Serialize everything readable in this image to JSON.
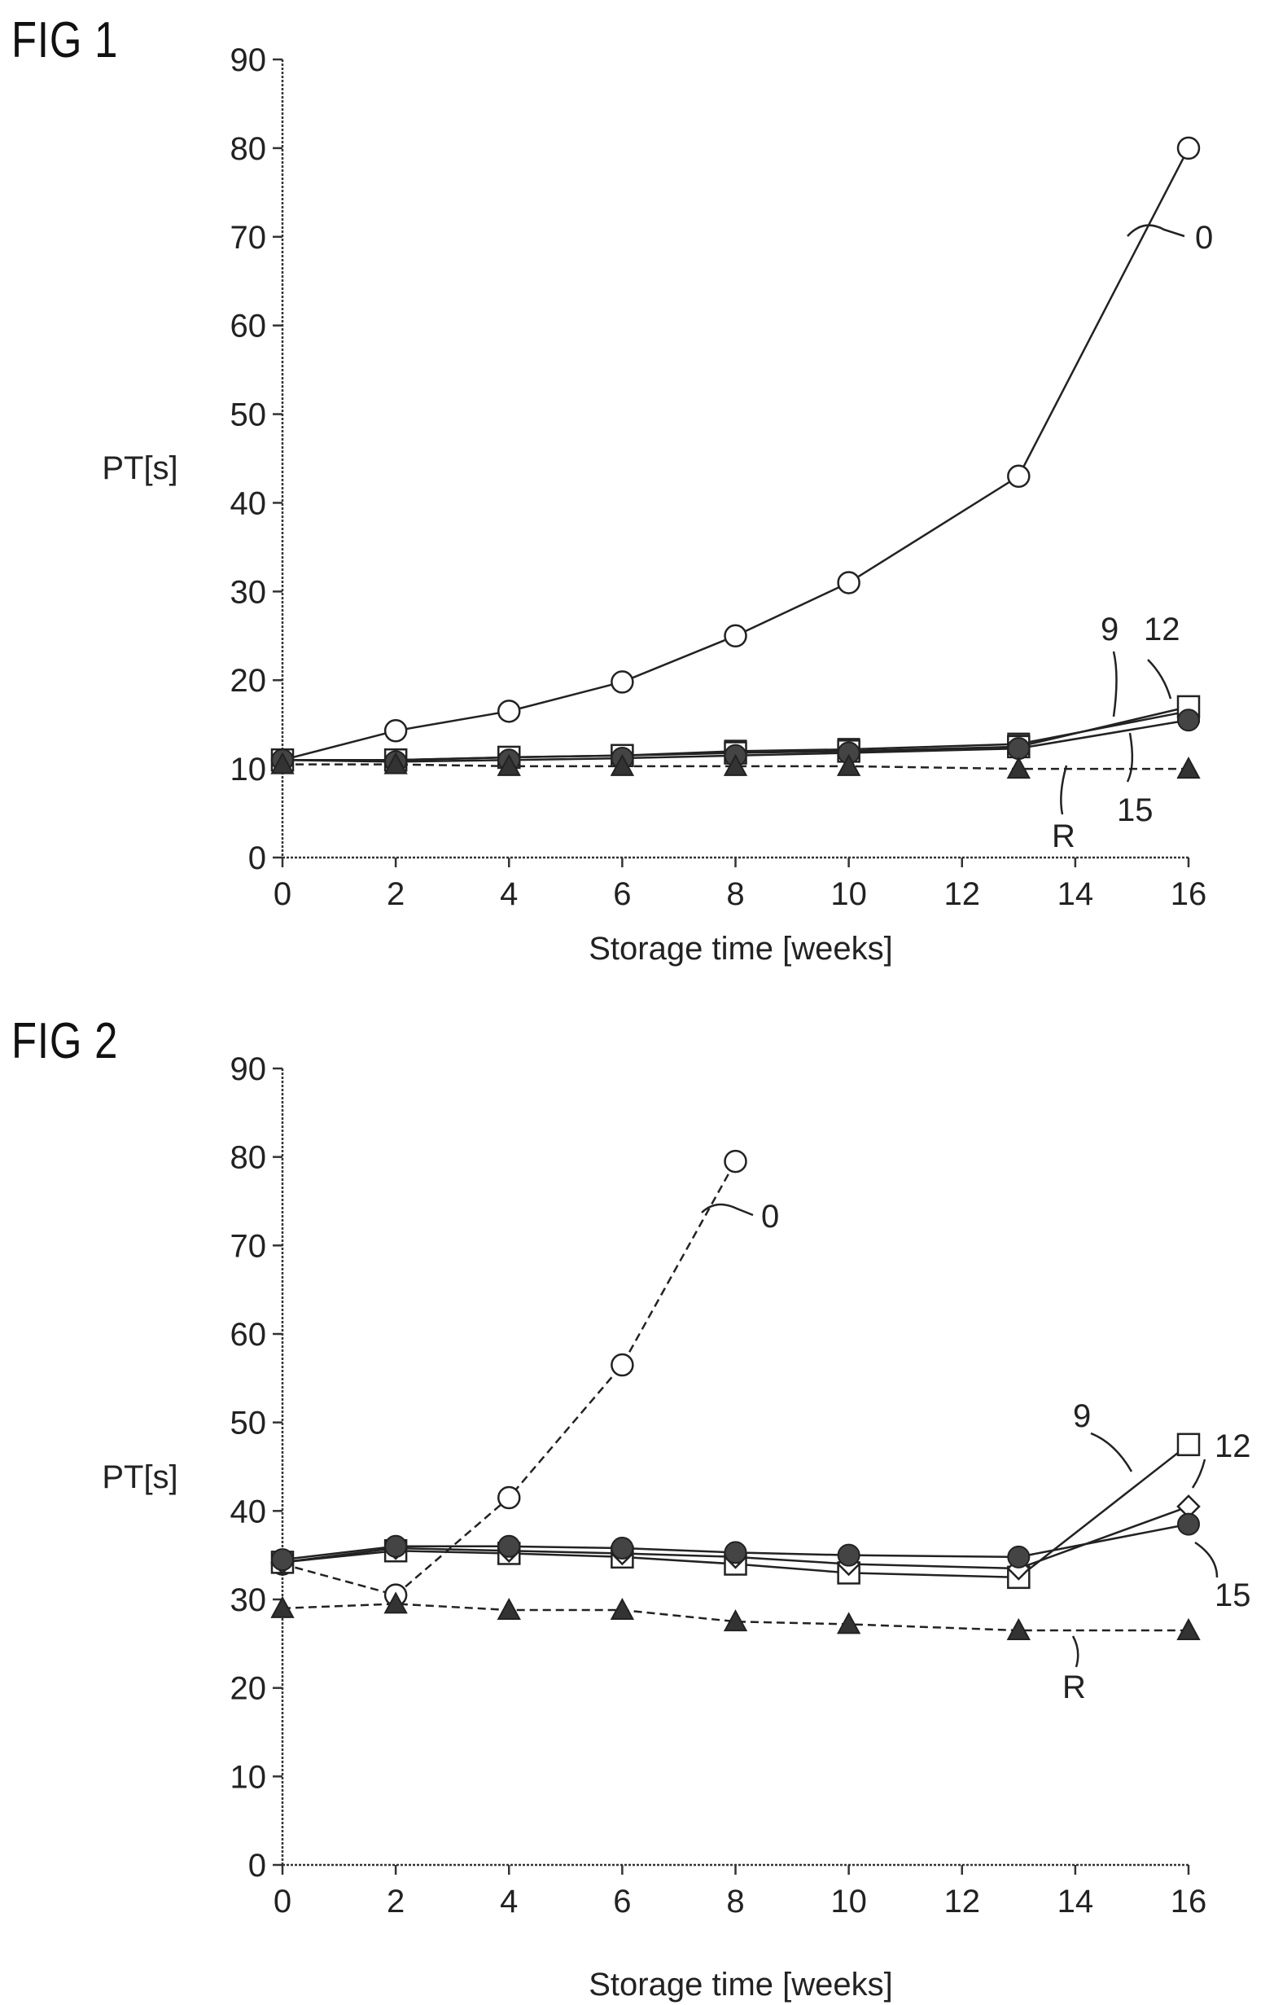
{
  "figures": [
    {
      "label": "FIG 1",
      "ylabel": "PT[s]",
      "xlabel": "Storage time [weeks]",
      "yticks": [
        "0",
        "10",
        "20",
        "30",
        "40",
        "50",
        "60",
        "70",
        "80",
        "90"
      ],
      "xticks": [
        "0",
        "2",
        "4",
        "6",
        "8",
        "10",
        "12",
        "14",
        "16"
      ]
    },
    {
      "label": "FIG 2",
      "ylabel": "PT[s]",
      "xlabel": "Storage time [weeks]",
      "yticks": [
        "0",
        "10",
        "20",
        "30",
        "40",
        "50",
        "60",
        "70",
        "80",
        "90"
      ],
      "xticks": [
        "0",
        "2",
        "4",
        "6",
        "8",
        "10",
        "12",
        "14",
        "16"
      ]
    }
  ],
  "chart_data": [
    {
      "type": "line",
      "title": "FIG 1",
      "xlabel": "Storage time [weeks]",
      "ylabel": "PT[s]",
      "xlim": [
        0,
        16
      ],
      "ylim": [
        0,
        90
      ],
      "grid": false,
      "legend": "none",
      "series": [
        {
          "name": "0",
          "marker": "open-circle",
          "linestyle": "solid",
          "x": [
            0,
            2,
            4,
            6,
            8,
            10,
            13,
            16
          ],
          "y": [
            11,
            14.3,
            16.5,
            19.8,
            25,
            31,
            43,
            80
          ]
        },
        {
          "name": "9",
          "marker": "filled-square",
          "linestyle": "solid",
          "x": [
            0,
            2,
            4,
            6,
            8,
            10,
            13,
            16
          ],
          "y": [
            11,
            11,
            11.3,
            11.5,
            12,
            12.2,
            12.8,
            16.5
          ]
        },
        {
          "name": "12",
          "marker": "open-square",
          "linestyle": "solid",
          "x": [
            0,
            2,
            4,
            6,
            8,
            10,
            13,
            16
          ],
          "y": [
            11,
            11,
            11.3,
            11.5,
            11.8,
            12,
            12.5,
            17
          ]
        },
        {
          "name": "15",
          "marker": "filled-circle",
          "linestyle": "solid",
          "x": [
            0,
            2,
            4,
            6,
            8,
            10,
            13,
            16
          ],
          "y": [
            11,
            10.8,
            11,
            11.2,
            11.5,
            11.8,
            12.3,
            15.5
          ]
        },
        {
          "name": "R",
          "marker": "filled-triangle",
          "linestyle": "dashed",
          "x": [
            0,
            2,
            4,
            6,
            8,
            10,
            13,
            16
          ],
          "y": [
            10.5,
            10.5,
            10.3,
            10.3,
            10.3,
            10.3,
            10,
            10
          ]
        }
      ]
    },
    {
      "type": "line",
      "title": "FIG 2",
      "xlabel": "Storage time [weeks]",
      "ylabel": "PT[s]",
      "xlim": [
        0,
        16
      ],
      "ylim": [
        0,
        90
      ],
      "grid": false,
      "legend": "none",
      "series": [
        {
          "name": "0",
          "marker": "open-circle",
          "linestyle": "dashed",
          "x": [
            0,
            2,
            4,
            6,
            8
          ],
          "y": [
            34,
            30.5,
            41.5,
            56.5,
            79.5
          ]
        },
        {
          "name": "9",
          "marker": "open-square",
          "linestyle": "solid",
          "x": [
            0,
            2,
            4,
            6,
            8,
            10,
            13,
            16
          ],
          "y": [
            34.2,
            35.5,
            35.2,
            34.8,
            34,
            33,
            32.5,
            47.5
          ]
        },
        {
          "name": "12",
          "marker": "open-diamond",
          "linestyle": "solid",
          "x": [
            0,
            2,
            4,
            6,
            8,
            10,
            13,
            16
          ],
          "y": [
            34.2,
            35.8,
            35.5,
            35.2,
            34.8,
            34,
            33.5,
            40.5
          ]
        },
        {
          "name": "15",
          "marker": "filled-circle",
          "linestyle": "solid",
          "x": [
            0,
            2,
            4,
            6,
            8,
            10,
            13,
            16
          ],
          "y": [
            34.5,
            36,
            36,
            35.8,
            35.3,
            35,
            34.8,
            38.5
          ]
        },
        {
          "name": "R",
          "marker": "filled-triangle",
          "linestyle": "dashed",
          "x": [
            0,
            2,
            4,
            6,
            8,
            10,
            13,
            16
          ],
          "y": [
            29,
            29.5,
            28.8,
            28.8,
            27.5,
            27.2,
            26.5,
            26.5
          ]
        }
      ]
    }
  ]
}
